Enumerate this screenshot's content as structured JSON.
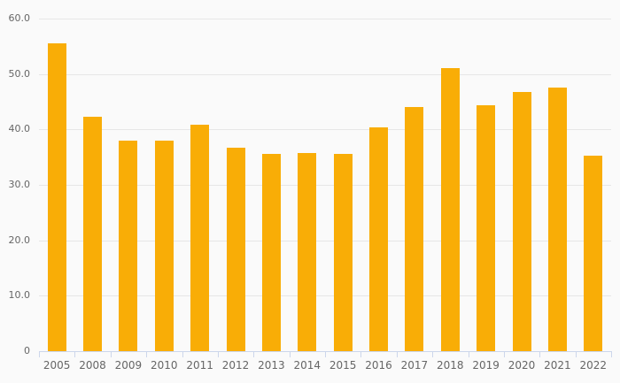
{
  "chart_data": {
    "type": "bar",
    "title": "",
    "xlabel": "",
    "ylabel": "",
    "categories": [
      "2005",
      "2008",
      "2009",
      "2010",
      "2011",
      "2012",
      "2013",
      "2014",
      "2015",
      "2016",
      "2017",
      "2018",
      "2019",
      "2020",
      "2021",
      "2022"
    ],
    "values": [
      55.5,
      42.3,
      38.0,
      37.9,
      40.9,
      36.7,
      35.6,
      35.8,
      35.6,
      40.4,
      44.1,
      51.0,
      44.3,
      46.7,
      47.6,
      35.2
    ],
    "ylim": [
      0,
      60
    ],
    "yticks": [
      0,
      10,
      20,
      30,
      40,
      50,
      60
    ],
    "ytick_labels": [
      "0",
      "10.0",
      "20.0",
      "30.0",
      "40.0",
      "50.0",
      "60.0"
    ],
    "grid": true,
    "legend": "none",
    "colors": {
      "bar": "#f9ad06",
      "background": "#fafafa",
      "gridline": "#e6e6e6",
      "axis_line": "#ccd6eb",
      "label": "#666666"
    }
  }
}
